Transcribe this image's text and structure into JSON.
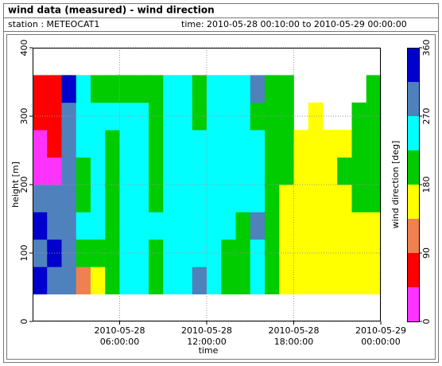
{
  "panel": {
    "title": "wind data (measured) - wind direction",
    "station": "station : METEOCAT1",
    "time": "time: 2010-05-28 00:10:00 to 2010-05-29 00:00:00"
  },
  "chart_data": {
    "type": "heatmap",
    "x_label": "time",
    "y_label": "height [m]",
    "colorbar_label": "wind direction [deg]",
    "x": [
      "2010-05-28 00:00:00",
      "2010-05-28 01:00:00",
      "2010-05-28 02:00:00",
      "2010-05-28 03:00:00",
      "2010-05-28 04:00:00",
      "2010-05-28 05:00:00",
      "2010-05-28 06:00:00",
      "2010-05-28 07:00:00",
      "2010-05-28 08:00:00",
      "2010-05-28 09:00:00",
      "2010-05-28 10:00:00",
      "2010-05-28 11:00:00",
      "2010-05-28 12:00:00",
      "2010-05-28 13:00:00",
      "2010-05-28 14:00:00",
      "2010-05-28 15:00:00",
      "2010-05-28 16:00:00",
      "2010-05-28 17:00:00",
      "2010-05-28 18:00:00",
      "2010-05-28 19:00:00",
      "2010-05-28 20:00:00",
      "2010-05-28 21:00:00",
      "2010-05-28 22:00:00",
      "2010-05-28 23:00:00"
    ],
    "y": [
      60,
      100,
      140,
      180,
      220,
      260,
      300,
      340
    ],
    "values": [
      [
        330,
        300,
        290,
        100,
        160,
        200,
        250,
        250,
        210,
        240,
        250,
        290,
        250,
        200,
        200,
        240,
        200,
        160,
        160,
        165,
        170,
        160,
        165,
        170
      ],
      [
        300,
        330,
        280,
        200,
        200,
        210,
        240,
        260,
        200,
        250,
        250,
        250,
        240,
        210,
        210,
        250,
        210,
        160,
        165,
        160,
        165,
        170,
        160,
        160
      ],
      [
        330,
        300,
        290,
        250,
        240,
        200,
        250,
        250,
        250,
        250,
        260,
        250,
        250,
        250,
        220,
        300,
        200,
        170,
        160,
        170,
        160,
        165,
        170,
        175
      ],
      [
        300,
        290,
        300,
        200,
        250,
        220,
        260,
        250,
        210,
        245,
        250,
        250,
        250,
        250,
        240,
        240,
        220,
        160,
        170,
        160,
        170,
        160,
        200,
        200
      ],
      [
        10,
        20,
        280,
        200,
        240,
        210,
        250,
        250,
        200,
        250,
        250,
        250,
        250,
        260,
        250,
        250,
        210,
        200,
        160,
        170,
        160,
        210,
        210,
        210
      ],
      [
        20,
        60,
        290,
        250,
        260,
        200,
        240,
        240,
        210,
        250,
        260,
        250,
        250,
        250,
        260,
        260,
        200,
        190,
        170,
        160,
        170,
        160,
        220,
        220
      ],
      [
        60,
        60,
        300,
        260,
        250,
        250,
        250,
        250,
        200,
        260,
        250,
        200,
        250,
        240,
        250,
        220,
        210,
        200,
        null,
        170,
        null,
        null,
        210,
        210
      ],
      [
        60,
        70,
        320,
        250,
        200,
        210,
        210,
        200,
        210,
        250,
        250,
        210,
        250,
        250,
        250,
        300,
        200,
        210,
        null,
        null,
        null,
        null,
        null,
        200
      ]
    ],
    "xlim": [
      "2010-05-28 00:00:00",
      "2010-05-29 00:00:00"
    ],
    "xticks": [
      {
        "value": "2010-05-28 06:00:00",
        "label": "2010-05-28\n06:00:00"
      },
      {
        "value": "2010-05-28 12:00:00",
        "label": "2010-05-28\n12:00:00"
      },
      {
        "value": "2010-05-28 18:00:00",
        "label": "2010-05-28\n18:00:00"
      },
      {
        "value": "2010-05-29 00:00:00",
        "label": "2010-05-29\n00:00:00"
      }
    ],
    "ylim": [
      0,
      400
    ],
    "yticks": [
      0,
      100,
      200,
      300,
      400
    ],
    "clim": [
      0,
      360
    ],
    "cticks": [
      0,
      90,
      180,
      270,
      360
    ],
    "colors": [
      "#ff33ff",
      "#ff0000",
      "#f08050",
      "#ffff00",
      "#00cc00",
      "#00ffff",
      "#4f81bd",
      "#0000cc"
    ],
    "grid": true
  }
}
